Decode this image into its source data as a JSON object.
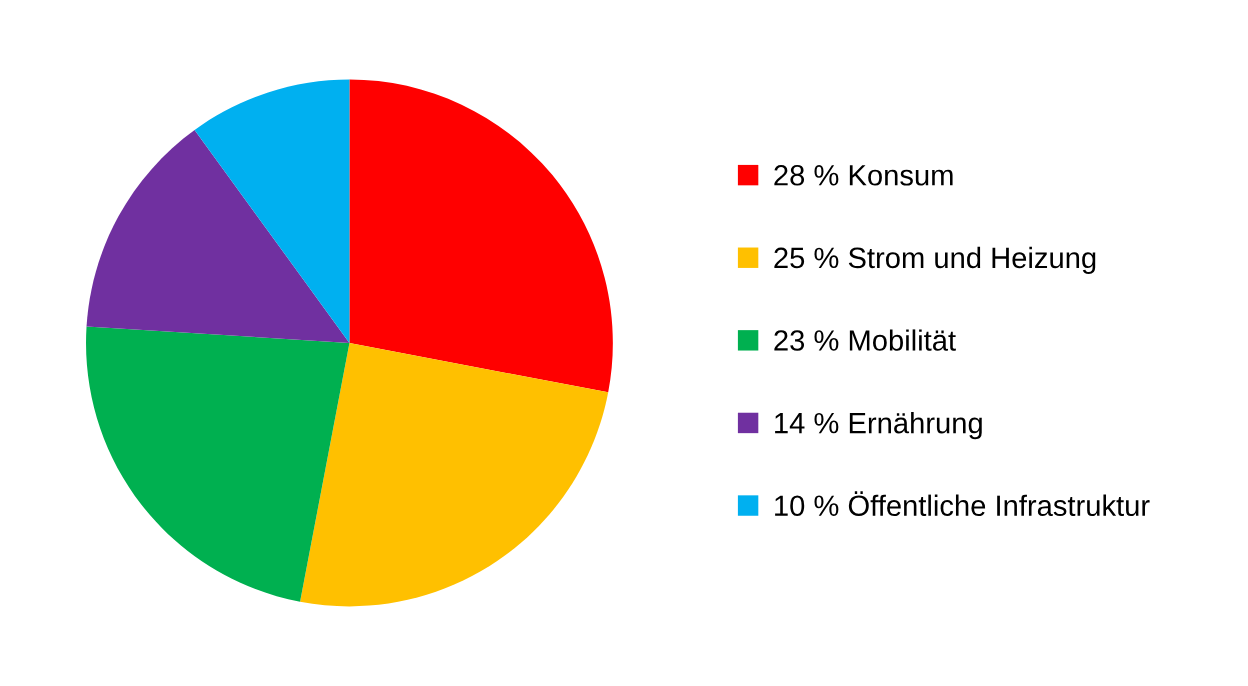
{
  "chart_data": {
    "type": "pie",
    "categories": [
      "28 % Konsum",
      "25 % Strom und Heizung",
      "23 % Mobilität",
      "14 % Ernährung",
      "10 % Öffentliche Infrastruktur"
    ],
    "values": [
      28,
      25,
      23,
      14,
      10
    ],
    "colors": [
      "#ff0000",
      "#ffc000",
      "#00b050",
      "#7030a0",
      "#00b0f0"
    ],
    "legend": "right"
  }
}
